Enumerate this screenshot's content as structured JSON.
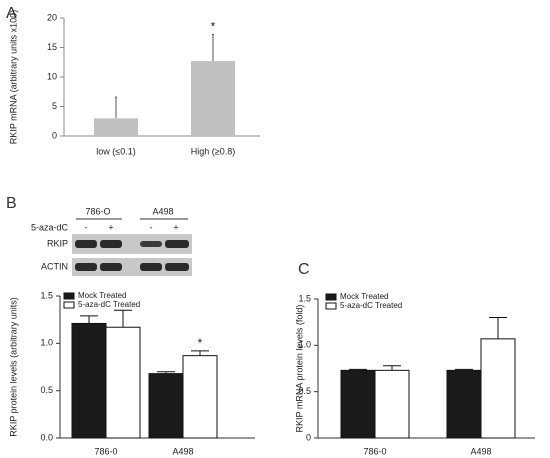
{
  "panel_labels": [
    "A",
    "B",
    "C"
  ],
  "blot": {
    "groups": [
      "786-O",
      "A498"
    ],
    "treatment": "5-aza-dC",
    "signs": [
      "-",
      "+",
      "-",
      "+"
    ],
    "rows": [
      "RKIP",
      "ACTIN"
    ]
  },
  "chart_data": [
    {
      "type": "bar",
      "ylabel": "RKIP mRNA (arbitrary units x100)",
      "categories": [
        "low (≤0.1)",
        "High (≥0.8)"
      ],
      "series": [
        {
          "color": "#c0c0c0",
          "values": [
            3,
            12.7
          ],
          "errors": [
            3.6,
            4.5
          ]
        }
      ],
      "ylim": [
        0,
        20
      ],
      "yticks": [
        0,
        5,
        10,
        15,
        20
      ],
      "annotations": [
        "*"
      ]
    },
    {
      "type": "bar",
      "ylabel": "RKIP protein levels (arbitrary units)",
      "categories": [
        "786-0",
        "A498"
      ],
      "series": [
        {
          "name": "Mock Treated",
          "color": "#1a1a1a",
          "values": [
            1.21,
            0.68
          ],
          "errors": [
            0.08,
            0.02
          ]
        },
        {
          "name": "5-aza-dC Treated",
          "color": "#ffffff",
          "values": [
            1.17,
            0.87
          ],
          "errors": [
            0.18,
            0.05
          ]
        }
      ],
      "ylim": [
        0,
        1.5
      ],
      "yticks": [
        {
          "value": 0,
          "label": "0.0"
        },
        0.5,
        {
          "value": 1,
          "label": "1.0"
        },
        1.5
      ],
      "annotations": [
        "*"
      ]
    },
    {
      "type": "bar",
      "ylabel": "RKIP mRNA protein levels (fold)",
      "categories": [
        "786-0",
        "A498"
      ],
      "series": [
        {
          "name": "Mock Treated",
          "color": "#1a1a1a",
          "values": [
            0.73,
            0.73
          ],
          "errors": [
            0.01,
            0.01
          ]
        },
        {
          "name": "5-aza-dC Treated",
          "color": "#ffffff",
          "values": [
            0.73,
            1.07
          ],
          "errors": [
            0.05,
            0.23
          ]
        }
      ],
      "ylim": [
        0,
        1.5
      ],
      "yticks": [
        0,
        0.5,
        {
          "value": 1,
          "label": "1.0"
        },
        1.5
      ]
    }
  ]
}
